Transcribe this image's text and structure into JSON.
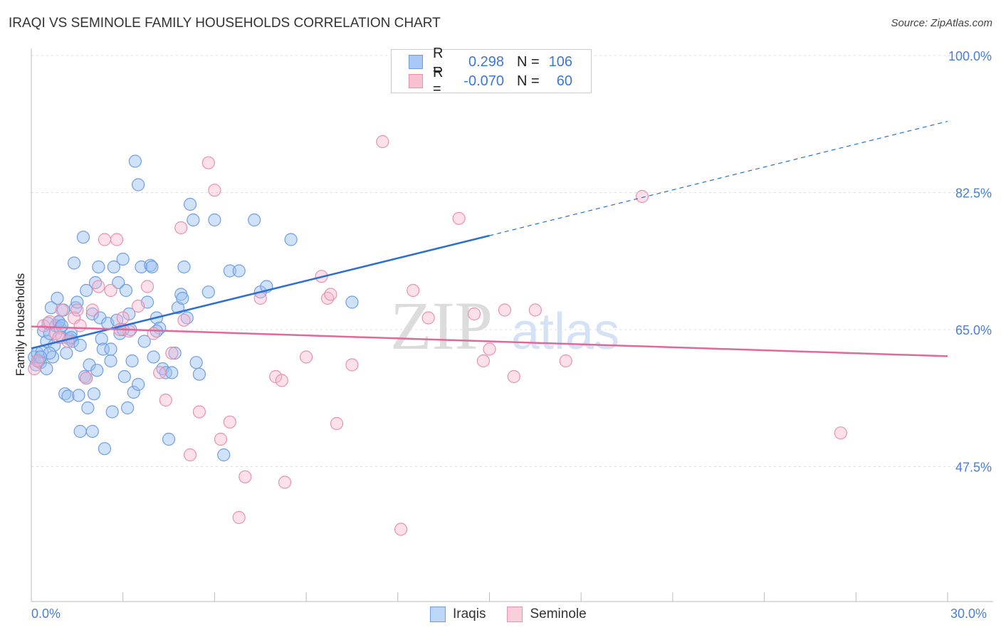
{
  "title": "IRAQI VS SEMINOLE FAMILY HOUSEHOLDS CORRELATION CHART",
  "source": "Source: ZipAtlas.com",
  "legend": {
    "rows": [
      {
        "label": "R =",
        "r": "0.298",
        "n_label": "N =",
        "n": "106",
        "color": "#a9c8f5",
        "border": "#6f9ee0"
      },
      {
        "label": "R =",
        "r": "-0.070",
        "n_label": "N =",
        "n": "60",
        "color": "#f8c1d2",
        "border": "#e890ad"
      }
    ]
  },
  "bottom_legend": [
    {
      "name": "Iraqis",
      "color": "#bcd6f8",
      "border": "#6f9ee0"
    },
    {
      "name": "Seminole",
      "color": "#f9cfdc",
      "border": "#e890ad"
    }
  ],
  "watermark": {
    "zip": "ZIP",
    "atlas": "atlas"
  },
  "chart_data": {
    "type": "scatter",
    "title": "IRAQI VS SEMINOLE FAMILY HOUSEHOLDS CORRELATION CHART",
    "xlabel": "",
    "ylabel": "Family Households",
    "xlim": [
      0,
      30
    ],
    "ylim": [
      32,
      102
    ],
    "x_tick_labels": [
      "0.0%",
      "30.0%"
    ],
    "y_ticks": [
      47.5,
      65.0,
      82.5,
      100.0
    ],
    "y_tick_labels": [
      "47.5%",
      "65.0%",
      "82.5%",
      "100.0%"
    ],
    "grid": true,
    "series": [
      {
        "name": "Iraqis",
        "color": "#6f9ee0",
        "fill": "rgba(150,190,245,0.45)",
        "trend": {
          "x0": 0,
          "y0": 62.6,
          "x1": 15,
          "y1": 77.0,
          "x_ext": 30,
          "y_ext": 91.6,
          "color": "#2c6fd1"
        },
        "points": [
          [
            0.1,
            61.5
          ],
          [
            0.15,
            60.5
          ],
          [
            0.2,
            62.0
          ],
          [
            0.25,
            61.0
          ],
          [
            0.3,
            60.8
          ],
          [
            0.35,
            62.2
          ],
          [
            0.4,
            64.8
          ],
          [
            0.5,
            63.5
          ],
          [
            0.55,
            65.8
          ],
          [
            0.6,
            64.5
          ],
          [
            0.65,
            67.8
          ],
          [
            0.7,
            61.5
          ],
          [
            0.75,
            63.0
          ],
          [
            0.8,
            65.5
          ],
          [
            0.85,
            69.0
          ],
          [
            0.9,
            66.0
          ],
          [
            0.95,
            65.2
          ],
          [
            1.0,
            64.0
          ],
          [
            1.05,
            67.5
          ],
          [
            1.1,
            56.8
          ],
          [
            1.15,
            62.0
          ],
          [
            1.2,
            56.5
          ],
          [
            1.25,
            63.8
          ],
          [
            1.3,
            64.5
          ],
          [
            1.35,
            63.5
          ],
          [
            1.4,
            73.5
          ],
          [
            1.45,
            67.8
          ],
          [
            1.5,
            68.5
          ],
          [
            1.55,
            56.6
          ],
          [
            1.6,
            63.0
          ],
          [
            1.7,
            76.8
          ],
          [
            1.75,
            59.0
          ],
          [
            1.8,
            70.0
          ],
          [
            1.85,
            55.0
          ],
          [
            1.9,
            60.5
          ],
          [
            2.0,
            67.0
          ],
          [
            2.05,
            56.8
          ],
          [
            2.1,
            71.0
          ],
          [
            2.15,
            59.8
          ],
          [
            2.2,
            73.0
          ],
          [
            2.25,
            66.5
          ],
          [
            2.3,
            63.8
          ],
          [
            2.35,
            62.5
          ],
          [
            2.4,
            49.8
          ],
          [
            2.5,
            65.8
          ],
          [
            2.6,
            61.0
          ],
          [
            2.65,
            54.5
          ],
          [
            2.7,
            73.0
          ],
          [
            2.8,
            66.2
          ],
          [
            2.85,
            71.0
          ],
          [
            2.9,
            64.5
          ],
          [
            3.0,
            74.0
          ],
          [
            3.05,
            59.0
          ],
          [
            3.1,
            70.0
          ],
          [
            3.15,
            55.0
          ],
          [
            3.2,
            67.0
          ],
          [
            3.25,
            65.0
          ],
          [
            3.3,
            61.0
          ],
          [
            3.35,
            57.0
          ],
          [
            3.4,
            86.5
          ],
          [
            3.5,
            58.0
          ],
          [
            3.6,
            73.0
          ],
          [
            3.7,
            63.5
          ],
          [
            3.8,
            68.5
          ],
          [
            3.9,
            73.2
          ],
          [
            3.95,
            73.0
          ],
          [
            4.0,
            61.5
          ],
          [
            4.1,
            66.5
          ],
          [
            4.2,
            65.2
          ],
          [
            4.3,
            60.0
          ],
          [
            4.4,
            59.5
          ],
          [
            4.5,
            51.0
          ],
          [
            4.6,
            59.5
          ],
          [
            4.7,
            62.0
          ],
          [
            4.8,
            67.8
          ],
          [
            4.9,
            69.5
          ],
          [
            4.95,
            69.0
          ],
          [
            5.0,
            73.0
          ],
          [
            5.1,
            66.5
          ],
          [
            5.2,
            81.0
          ],
          [
            5.3,
            79.0
          ],
          [
            5.4,
            60.8
          ],
          [
            5.5,
            59.3
          ],
          [
            5.8,
            69.8
          ],
          [
            6.0,
            79.0
          ],
          [
            6.3,
            49.0
          ],
          [
            6.5,
            72.5
          ],
          [
            6.8,
            72.5
          ],
          [
            7.3,
            79.0
          ],
          [
            7.5,
            69.8
          ],
          [
            7.7,
            70.5
          ],
          [
            8.5,
            76.5
          ],
          [
            10.5,
            68.5
          ],
          [
            0.9,
            66.0
          ],
          [
            1.0,
            65.5
          ],
          [
            0.6,
            62.0
          ],
          [
            3.0,
            65.0
          ],
          [
            2.6,
            62.5
          ],
          [
            1.3,
            64.0
          ],
          [
            1.8,
            58.8
          ],
          [
            0.3,
            61.5
          ],
          [
            0.5,
            60.0
          ],
          [
            2.0,
            52.0
          ],
          [
            1.6,
            52.0
          ],
          [
            3.5,
            83.5
          ],
          [
            4.1,
            64.8
          ]
        ]
      },
      {
        "name": "Seminole",
        "color": "#e890ad",
        "fill": "rgba(248,180,205,0.4)",
        "trend": {
          "x0": 0,
          "y0": 65.4,
          "x1": 30,
          "y1": 61.6,
          "color": "#e0689a"
        },
        "points": [
          [
            0.1,
            60.0
          ],
          [
            0.2,
            61.0
          ],
          [
            0.4,
            65.5
          ],
          [
            0.6,
            66.0
          ],
          [
            0.8,
            64.5
          ],
          [
            1.0,
            67.5
          ],
          [
            1.2,
            63.5
          ],
          [
            1.4,
            66.5
          ],
          [
            1.6,
            65.5
          ],
          [
            1.8,
            58.8
          ],
          [
            2.0,
            67.5
          ],
          [
            2.2,
            70.5
          ],
          [
            2.4,
            76.5
          ],
          [
            2.6,
            70.0
          ],
          [
            2.8,
            76.5
          ],
          [
            3.0,
            66.5
          ],
          [
            3.2,
            64.8
          ],
          [
            3.5,
            68.0
          ],
          [
            3.8,
            70.5
          ],
          [
            4.0,
            64.5
          ],
          [
            4.2,
            59.5
          ],
          [
            4.4,
            56.0
          ],
          [
            4.6,
            62.0
          ],
          [
            4.9,
            78.0
          ],
          [
            5.0,
            66.2
          ],
          [
            5.2,
            49.0
          ],
          [
            5.5,
            54.5
          ],
          [
            5.8,
            86.3
          ],
          [
            6.0,
            82.8
          ],
          [
            6.2,
            51.0
          ],
          [
            6.5,
            53.2
          ],
          [
            6.8,
            41.0
          ],
          [
            7.0,
            46.2
          ],
          [
            7.5,
            69.0
          ],
          [
            8.0,
            59.0
          ],
          [
            8.2,
            58.5
          ],
          [
            8.3,
            45.5
          ],
          [
            9.0,
            61.5
          ],
          [
            9.5,
            71.8
          ],
          [
            9.7,
            69.0
          ],
          [
            10.0,
            53.0
          ],
          [
            9.8,
            69.5
          ],
          [
            10.5,
            60.5
          ],
          [
            11.5,
            89.0
          ],
          [
            12.1,
            39.5
          ],
          [
            12.5,
            70.0
          ],
          [
            13.0,
            66.5
          ],
          [
            14.0,
            79.2
          ],
          [
            14.5,
            67.0
          ],
          [
            14.8,
            61.0
          ],
          [
            15.0,
            62.5
          ],
          [
            15.5,
            67.5
          ],
          [
            15.8,
            59.0
          ],
          [
            16.5,
            67.5
          ],
          [
            17.5,
            61.0
          ],
          [
            20.0,
            82.0
          ],
          [
            26.5,
            51.8
          ],
          [
            1.5,
            67.5
          ],
          [
            2.9,
            65.0
          ],
          [
            0.9,
            64.0
          ]
        ]
      }
    ]
  }
}
